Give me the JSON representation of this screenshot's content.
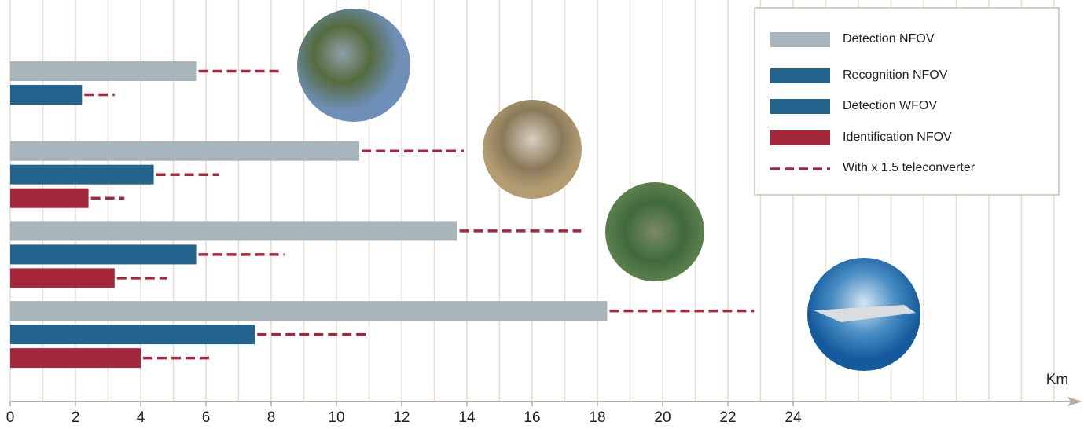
{
  "chart_data": {
    "type": "bar",
    "orientation": "horizontal",
    "categories": [
      null,
      null,
      null,
      null
    ],
    "series": [
      {
        "name": "Detection NFOV",
        "color": "#a9b5bd",
        "values": [
          5.7,
          10.7,
          13.7,
          18.3
        ],
        "teleconverter_values": [
          8.3,
          13.9,
          17.5,
          22.8
        ]
      },
      {
        "name": "Recognition NFOV",
        "color": "#22648e",
        "values": [
          2.2,
          4.4,
          5.7,
          7.5
        ],
        "teleconverter_values": [
          3.2,
          6.4,
          8.4,
          10.9
        ]
      },
      {
        "name": "Detection WFOV",
        "color": "#22648e",
        "values": [
          null,
          null,
          null,
          null
        ],
        "teleconverter_values": [
          null,
          null,
          null,
          null
        ]
      },
      {
        "name": "Identification NFOV",
        "color": "#a5273b",
        "values": [
          null,
          2.4,
          3.2,
          4.0
        ],
        "teleconverter_values": [
          null,
          3.5,
          4.8,
          6.1
        ]
      }
    ],
    "teleconverter_label": "With x 1.5 teleconverter",
    "teleconverter_color": "#a5273b",
    "xlabel": "Km",
    "xlim": [
      0,
      32
    ],
    "xticks": [
      0,
      2,
      4,
      6,
      8,
      10,
      12,
      14,
      16,
      18,
      20,
      22,
      24
    ],
    "minor_xticks": [
      1,
      3,
      5,
      7,
      9,
      11,
      13,
      15,
      17,
      19,
      21,
      23,
      25,
      26,
      27,
      28,
      29,
      30,
      31,
      32
    ],
    "grid": true,
    "legend": "upper right"
  }
}
